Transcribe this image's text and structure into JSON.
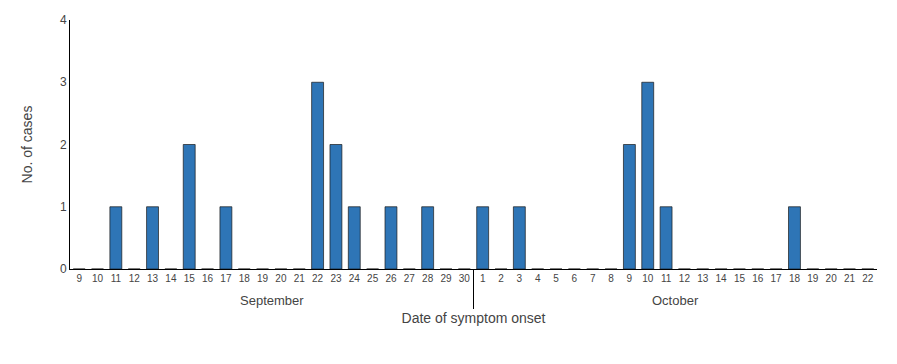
{
  "chart_data": {
    "type": "bar",
    "categories": [
      "9",
      "10",
      "11",
      "12",
      "13",
      "14",
      "15",
      "16",
      "17",
      "18",
      "19",
      "20",
      "21",
      "22",
      "23",
      "24",
      "25",
      "26",
      "27",
      "28",
      "29",
      "30",
      "1",
      "2",
      "3",
      "4",
      "5",
      "6",
      "7",
      "8",
      "9",
      "10",
      "11",
      "12",
      "13",
      "14",
      "15",
      "16",
      "17",
      "18",
      "19",
      "20",
      "21",
      "22"
    ],
    "values": [
      0,
      0,
      1,
      0,
      1,
      0,
      2,
      0,
      1,
      0,
      0,
      0,
      0,
      3,
      2,
      1,
      0,
      1,
      0,
      1,
      0,
      0,
      1,
      0,
      1,
      0,
      0,
      0,
      0,
      0,
      2,
      3,
      1,
      0,
      0,
      0,
      0,
      0,
      0,
      1,
      0,
      0,
      0,
      0
    ],
    "color": "#2E75B6",
    "xlabel": "Date of symptom onset",
    "ylabel": "No. of cases",
    "annotations": [
      "September",
      "October"
    ],
    "ylim": [
      0,
      4
    ],
    "yticks": [
      0,
      1,
      2,
      3,
      4
    ],
    "grid": false
  }
}
